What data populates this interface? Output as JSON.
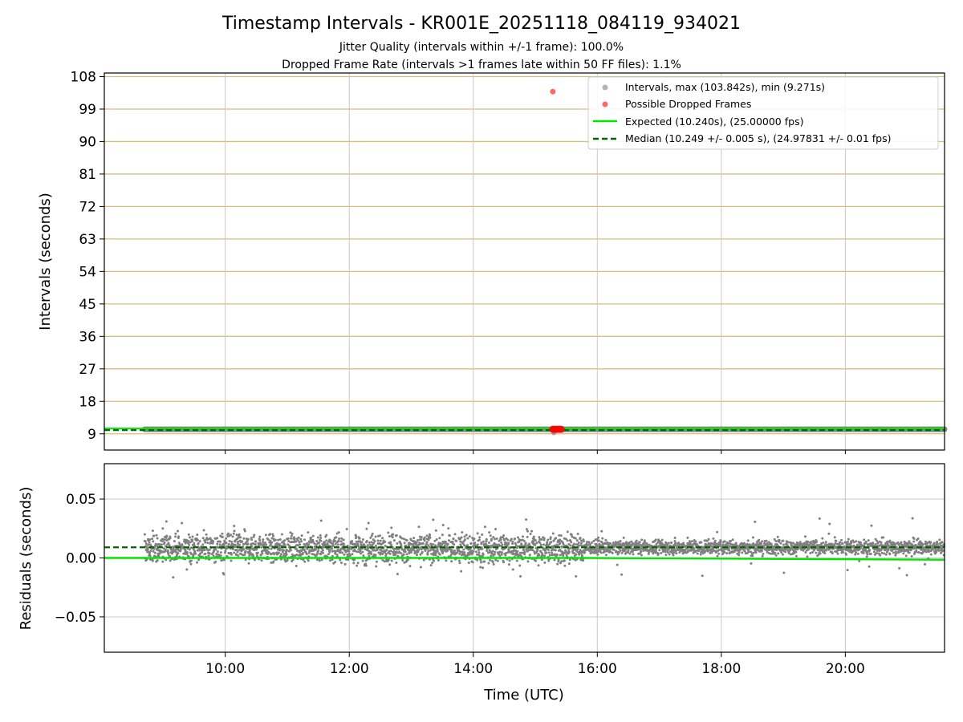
{
  "figure": {
    "title": "Timestamp Intervals - KR001E_20251118_084119_934021",
    "subtitle_line1": "Jitter Quality (intervals within +/-1 frame): 100.0%",
    "subtitle_line2": "Dropped Frame Rate (intervals >1 frames late within 50 FF files): 1.1%"
  },
  "colors": {
    "intervals": "#808080",
    "dropped": "#ff0000",
    "expected": "#00e600",
    "median": "#006400",
    "hgrid_top": "#d4bf80",
    "grid": "#c8c8c8"
  },
  "chart_data": [
    {
      "type": "scatter",
      "ylabel": "Intervals (seconds)",
      "xlim_hours": [
        8.05,
        21.6
      ],
      "ylim": [
        4.5,
        109
      ],
      "yticks": [
        9,
        18,
        27,
        36,
        45,
        54,
        63,
        72,
        81,
        90,
        99,
        108
      ],
      "ytick_labels": [
        "9",
        "18",
        "27",
        "36",
        "45",
        "54",
        "63",
        "72",
        "81",
        "90",
        "99",
        "108"
      ],
      "grid": true,
      "legend_placement": "top-right",
      "legend": [
        "Intervals, max (103.842s), min (9.271s)",
        "Possible Dropped Frames",
        "Expected (10.240s), (25.00000 fps)",
        "Median (10.249 +/- 0.005 s), (24.97831 +/- 0.01 fps)"
      ],
      "series": [
        {
          "name": "Intervals",
          "x_start_time": "08:42",
          "x_end_time": "21:36",
          "value_approx": 10.249,
          "max": 103.842,
          "min": 9.271
        },
        {
          "name": "Possible Dropped Frames",
          "points": [
            {
              "x_time": "15:17",
              "y": 103.842
            },
            {
              "x_time": "15:17",
              "y": 10.24
            },
            {
              "x_time": "15:19",
              "y": 10.24
            },
            {
              "x_time": "15:21",
              "y": 10.24
            },
            {
              "x_time": "15:23",
              "y": 10.24
            },
            {
              "x_time": "15:25",
              "y": 10.24
            }
          ]
        },
        {
          "name": "Expected",
          "y": 10.24
        },
        {
          "name": "Median",
          "y": 10.249
        }
      ]
    },
    {
      "type": "scatter",
      "ylabel": "Residuals (seconds)",
      "xlabel": "Time (UTC)",
      "xlim_hours": [
        8.05,
        21.6
      ],
      "ylim": [
        -0.08,
        0.08
      ],
      "yticks": [
        -0.05,
        0.0,
        0.05
      ],
      "ytick_labels": [
        "−0.05",
        "0.00",
        "0.05"
      ],
      "xticks_hours": [
        10,
        12,
        14,
        16,
        18,
        20
      ],
      "xtick_labels": [
        "10:00",
        "12:00",
        "14:00",
        "16:00",
        "18:00",
        "20:00"
      ],
      "grid": true,
      "series": [
        {
          "name": "Residuals",
          "x_start_time": "08:42",
          "x_end_time": "21:36",
          "center_before_16": 0.008,
          "center_after_16": 0.009,
          "spread_before_16": 0.006,
          "spread_after_16": 0.003
        },
        {
          "name": "Median",
          "y": 0.009
        },
        {
          "name": "Expected",
          "points": [
            {
              "x_time": "08:03",
              "y": 0.0
            },
            {
              "x_time": "15:45",
              "y": 0.0
            },
            {
              "x_time": "21:36",
              "y": -0.0015
            }
          ]
        }
      ]
    }
  ]
}
